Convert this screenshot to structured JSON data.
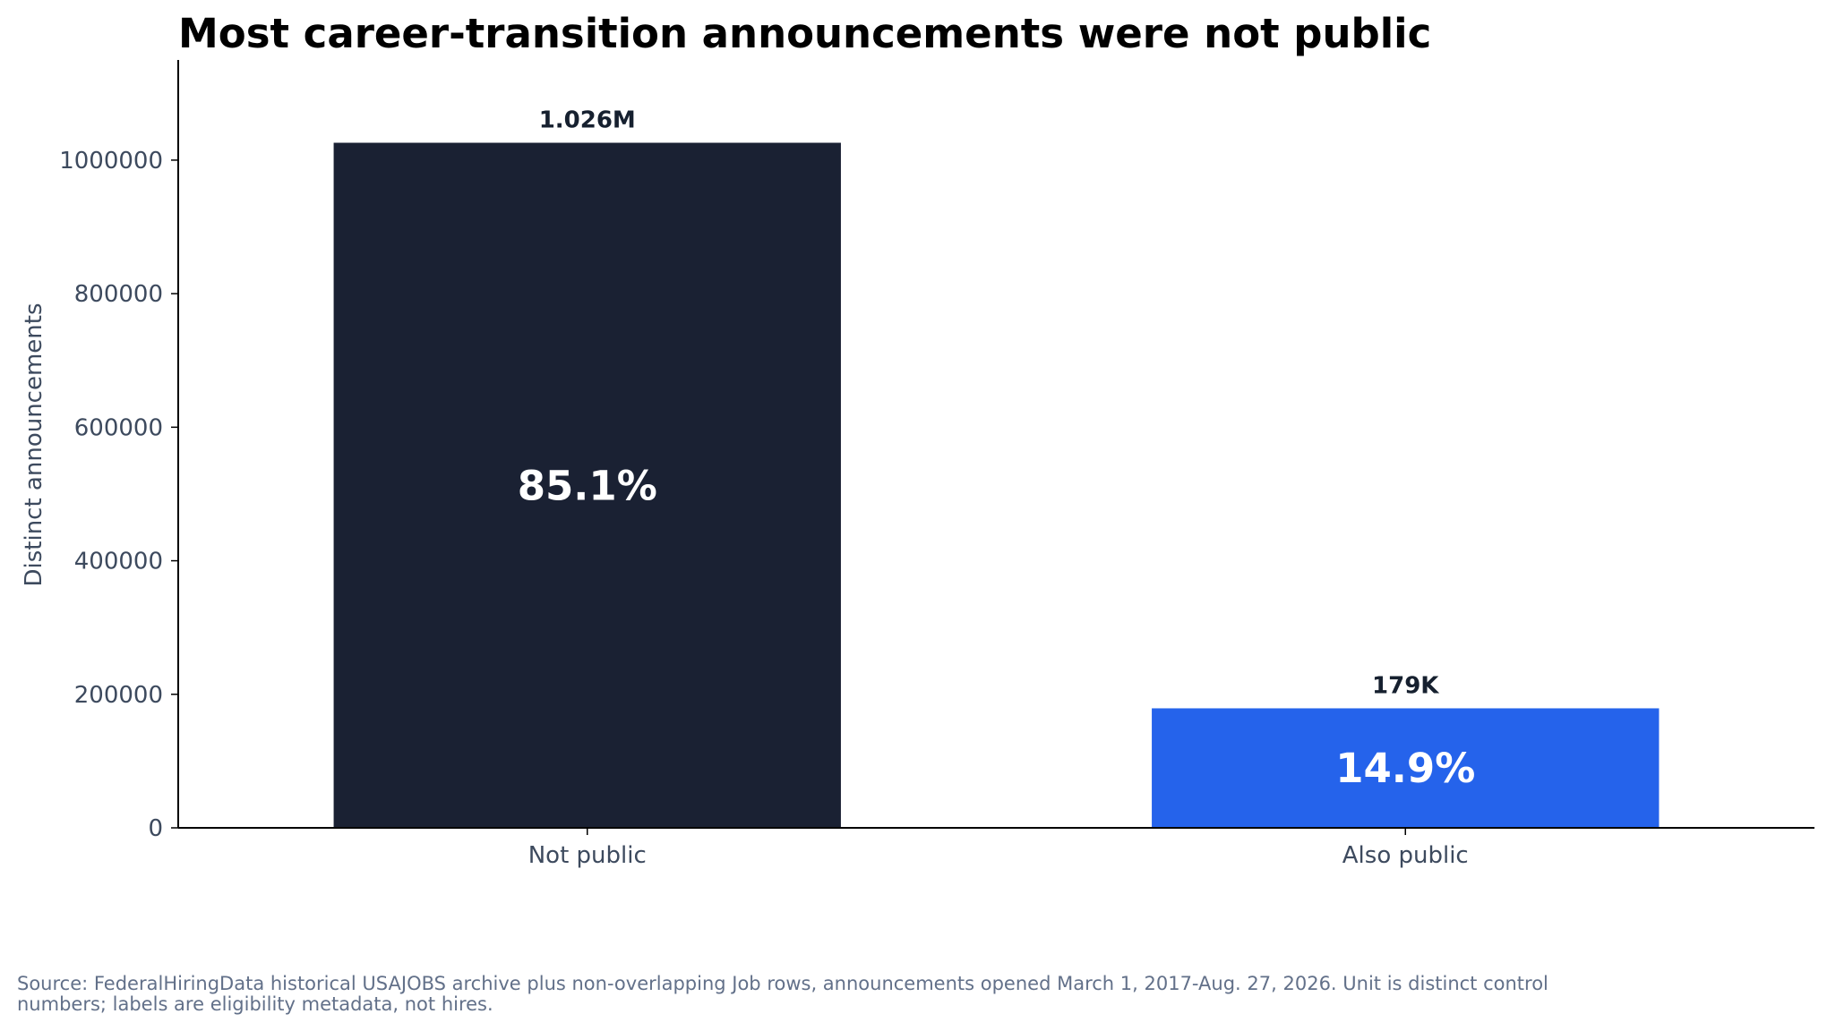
{
  "chart_data": {
    "type": "bar",
    "title": "Most career-transition announcements were not public",
    "xlabel": "",
    "ylabel": "Distinct announcements",
    "categories": [
      "Not public",
      "Also public"
    ],
    "values": [
      1026000,
      179000
    ],
    "value_labels": [
      "1.026M",
      "179K"
    ],
    "percent_labels": [
      "85.1%",
      "14.9%"
    ],
    "colors": [
      "#1a2133",
      "#2563eb"
    ],
    "yticks": [
      0,
      200000,
      400000,
      600000,
      800000,
      1000000
    ],
    "ytick_labels": [
      "0",
      "200000",
      "400000",
      "600000",
      "800000",
      "1000000"
    ],
    "ylim": [
      0,
      1150000
    ],
    "grid": false,
    "legend": "none"
  },
  "source": "Source: FederalHiringData historical USAJOBS archive plus non-overlapping Job rows, announcements opened March 1, 2017-Aug. 27, 2026. Unit is distinct control numbers; labels are eligibility metadata, not hires."
}
